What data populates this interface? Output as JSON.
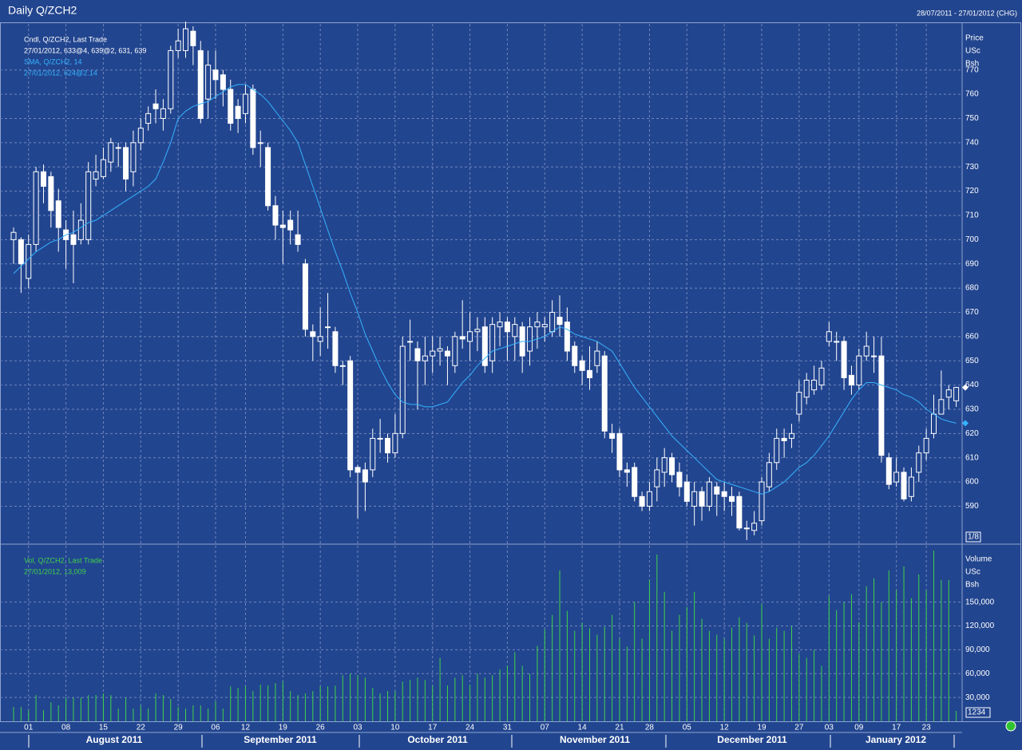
{
  "chart_data": [
    {
      "type": "candlestick",
      "title": "Daily Q/ZCH2",
      "date_range": "28/07/2011 - 27/01/2012 (CHG)",
      "legend": [
        "Cndl, Q/ZCH2, Last Trade",
        "27/01/2012, 633@4, 639@2, 631, 639"
      ],
      "axis_label": [
        "Price",
        "USc",
        "Bsh"
      ],
      "scale_label": "1/8",
      "months": [
        "August 2011",
        "September 2011",
        "October 2011",
        "November 2011",
        "December 2011",
        "January 2012"
      ],
      "categories": [
        null,
        null,
        "01",
        null,
        null,
        null,
        null,
        "08",
        null,
        null,
        null,
        null,
        "15",
        null,
        null,
        null,
        null,
        "22",
        null,
        null,
        null,
        null,
        "29",
        null,
        null,
        null,
        null,
        "06",
        null,
        null,
        null,
        "12",
        null,
        null,
        null,
        null,
        "19",
        null,
        null,
        null,
        null,
        "26",
        null,
        null,
        null,
        null,
        "03",
        null,
        null,
        null,
        null,
        "10",
        null,
        null,
        null,
        null,
        "17",
        null,
        null,
        null,
        null,
        "24",
        null,
        null,
        null,
        null,
        "31",
        null,
        null,
        null,
        null,
        "07",
        null,
        null,
        null,
        null,
        "14",
        null,
        null,
        null,
        null,
        "21",
        null,
        null,
        null,
        "28",
        null,
        null,
        null,
        null,
        "05",
        null,
        null,
        null,
        null,
        "12",
        null,
        null,
        null,
        null,
        "19",
        null,
        null,
        null,
        null,
        "27",
        null,
        null,
        null,
        "03",
        null,
        null,
        null,
        "09",
        null,
        null,
        null,
        null,
        "17",
        null,
        null,
        null,
        "23",
        null,
        null,
        null,
        null
      ],
      "open": [
        700,
        700,
        684,
        698,
        728,
        726,
        716,
        704,
        702,
        700,
        700,
        725,
        726,
        732,
        738,
        738,
        728,
        740,
        748,
        756,
        750,
        754,
        778,
        778,
        786,
        778,
        758,
        770,
        768,
        762,
        755,
        752,
        762,
        740,
        738,
        714,
        706,
        708,
        702,
        690,
        662,
        658,
        664,
        662,
        648,
        650,
        606,
        605,
        605,
        618,
        618,
        612,
        620,
        658,
        655,
        650,
        652,
        654,
        654,
        648,
        660,
        658,
        662,
        664,
        650,
        664,
        666,
        660,
        664,
        654,
        664,
        664,
        662,
        668,
        666,
        656,
        650,
        646,
        648,
        652,
        620,
        620,
        605,
        606,
        594,
        590,
        598,
        604,
        610,
        604,
        600,
        590,
        596,
        590,
        598,
        596,
        594,
        594,
        581,
        580,
        584,
        598,
        608,
        618,
        618,
        628,
        635,
        638,
        640,
        658,
        658,
        658,
        644,
        640,
        652,
        652,
        652,
        610,
        600,
        604,
        594,
        604,
        612,
        620,
        628,
        635,
        633.5
      ],
      "high": [
        705,
        701,
        702,
        730,
        731,
        728,
        721,
        708,
        712,
        715,
        732,
        735,
        738,
        742,
        740,
        740,
        745,
        750,
        755,
        762,
        758,
        780,
        787,
        790,
        788,
        782,
        778,
        778,
        770,
        766,
        758,
        764,
        764,
        745,
        740,
        718,
        712,
        712,
        712,
        692,
        665,
        672,
        678,
        664,
        650,
        652,
        607,
        608,
        622,
        626,
        620,
        628,
        660,
        667,
        658,
        660,
        660,
        660,
        656,
        662,
        675,
        670,
        668,
        668,
        668,
        670,
        668,
        668,
        666,
        668,
        670,
        668,
        675,
        677,
        672,
        658,
        652,
        656,
        658,
        654,
        624,
        622,
        608,
        608,
        596,
        600,
        610,
        614,
        612,
        608,
        603,
        600,
        598,
        602,
        600,
        600,
        598,
        596,
        584,
        588,
        602,
        612,
        622,
        622,
        624,
        642,
        645,
        648,
        650,
        666,
        662,
        660,
        648,
        655,
        662,
        660,
        660,
        612,
        610,
        606,
        606,
        615,
        622,
        636,
        646,
        640,
        639.25
      ],
      "low": [
        690,
        678,
        680,
        695,
        715,
        705,
        695,
        688,
        682,
        698,
        698,
        722,
        725,
        728,
        730,
        720,
        722,
        737,
        745,
        748,
        745,
        752,
        775,
        775,
        772,
        748,
        750,
        758,
        755,
        745,
        744,
        748,
        735,
        730,
        712,
        700,
        690,
        698,
        695,
        660,
        650,
        652,
        655,
        645,
        640,
        602,
        585,
        588,
        602,
        612,
        608,
        610,
        618,
        650,
        630,
        640,
        645,
        648,
        640,
        645,
        655,
        650,
        654,
        645,
        645,
        656,
        650,
        650,
        645,
        648,
        655,
        658,
        660,
        660,
        650,
        645,
        640,
        638,
        645,
        618,
        612,
        602,
        598,
        592,
        588,
        588,
        592,
        598,
        600,
        594,
        590,
        582,
        584,
        588,
        586,
        588,
        586,
        580,
        576,
        578,
        582,
        596,
        605,
        610,
        614,
        625,
        632,
        636,
        638,
        656,
        650,
        638,
        636,
        638,
        650,
        645,
        608,
        597,
        598,
        592,
        592,
        600,
        609,
        618,
        628,
        630,
        631
      ],
      "close": [
        703,
        690,
        698,
        728,
        722,
        712,
        705,
        700,
        698,
        708,
        728,
        728,
        733,
        740,
        738,
        725,
        740,
        746,
        752,
        754,
        754,
        778,
        782,
        787,
        780,
        750,
        772,
        766,
        762,
        748,
        750,
        760,
        738,
        740,
        714,
        706,
        705,
        704,
        698,
        663,
        660,
        660,
        664,
        648,
        648,
        605,
        604,
        600,
        618,
        618,
        612,
        620,
        656,
        658,
        650,
        652,
        654,
        655,
        652,
        660,
        659,
        662,
        663,
        648,
        665,
        666,
        662,
        665,
        652,
        664,
        666,
        665,
        670,
        665,
        654,
        648,
        646,
        643,
        654,
        621,
        618,
        605,
        604,
        594,
        590,
        596,
        605,
        610,
        603,
        598,
        592,
        596,
        590,
        600,
        595,
        594,
        592,
        581,
        581,
        583,
        600,
        608,
        618,
        617,
        620,
        637,
        642,
        642,
        647,
        662,
        658,
        643,
        640,
        652,
        656,
        652,
        611,
        599,
        604,
        593,
        602,
        612,
        618,
        628,
        634,
        638,
        639
      ],
      "sma": {
        "name": "SMA, Q/ZCH2,  14",
        "last_label": "27/01/2012, 624@2.14",
        "color": "#35b3ff",
        "values": [
          686,
          689,
          692,
          695,
          697,
          699,
          700,
          702,
          703,
          705,
          707,
          708,
          710,
          712,
          714,
          716,
          718,
          720,
          722,
          725,
          732,
          740,
          750,
          753,
          755,
          756,
          757,
          759,
          761,
          763,
          764,
          764,
          762,
          760,
          757,
          753,
          749,
          745,
          740,
          731,
          722,
          713,
          704,
          695,
          687,
          678,
          670,
          661,
          654,
          647,
          641,
          636,
          633,
          632,
          632,
          631,
          631,
          632,
          633,
          637,
          641,
          644,
          648,
          651,
          654,
          655,
          656,
          657,
          658,
          658,
          659,
          660,
          662,
          664,
          663,
          661,
          660,
          659,
          658,
          656,
          654,
          649,
          644,
          639,
          635,
          631,
          627,
          623,
          619,
          616,
          613,
          610,
          607,
          604,
          601,
          600,
          599,
          598,
          597,
          596,
          595,
          596,
          598,
          600,
          603,
          606,
          608,
          611,
          615,
          619,
          624,
          629,
          634,
          638,
          641,
          641,
          640,
          639,
          638,
          636,
          635,
          633,
          630,
          628,
          626,
          625,
          624.25
        ]
      },
      "ylim": [
        575,
        789
      ],
      "yticks": [
        590,
        600,
        610,
        620,
        630,
        640,
        650,
        660,
        670,
        680,
        690,
        700,
        710,
        720,
        730,
        740,
        750,
        760,
        770
      ],
      "grid": true
    },
    {
      "type": "bar",
      "legend": [
        "Vol, Q/ZCH2, Last Trade",
        "27/01/2012, 13,009"
      ],
      "axis_label": [
        "Volume",
        "USc",
        "Bsh"
      ],
      "scale_label": "1234",
      "color": "#3fd24a",
      "values": [
        18000,
        18000,
        14000,
        33000,
        14000,
        24000,
        20000,
        30000,
        30000,
        30000,
        33000,
        33000,
        35000,
        33000,
        16000,
        30000,
        16000,
        20000,
        16000,
        35000,
        33000,
        28000,
        18000,
        16000,
        20000,
        20000,
        16000,
        25000,
        16000,
        44000,
        42000,
        44000,
        38000,
        46000,
        45000,
        48000,
        50000,
        38000,
        33000,
        35000,
        38000,
        44000,
        44000,
        45000,
        58000,
        60000,
        58000,
        55000,
        42000,
        35000,
        38000,
        38000,
        50000,
        52000,
        55000,
        52000,
        45000,
        80000,
        45000,
        55000,
        58000,
        46000,
        60000,
        55000,
        58000,
        65000,
        70000,
        87000,
        70000,
        60000,
        95000,
        116000,
        134000,
        190000,
        139000,
        114000,
        124000,
        117000,
        109000,
        119000,
        134000,
        104000,
        94000,
        150000,
        104000,
        178000,
        210000,
        163000,
        114000,
        134000,
        144000,
        163000,
        129000,
        114000,
        109000,
        104000,
        118000,
        131000,
        124000,
        108000,
        148000,
        104000,
        118000,
        114000,
        120000,
        85000,
        80000,
        90000,
        70000,
        158000,
        140000,
        150000,
        160000,
        125000,
        170000,
        180000,
        150000,
        190000,
        165000,
        195000,
        155000,
        185000,
        165000,
        215000,
        178000,
        178000,
        13009
      ],
      "ylim": [
        0,
        220000
      ],
      "yticks": [
        {
          "value": 30000,
          "label": "30,000"
        },
        {
          "value": 60000,
          "label": "60,000"
        },
        {
          "value": 90000,
          "label": "90,000"
        },
        {
          "value": 120000,
          "label": "120,000"
        },
        {
          "value": 150000,
          "label": "150,000"
        }
      ],
      "grid": true
    }
  ]
}
